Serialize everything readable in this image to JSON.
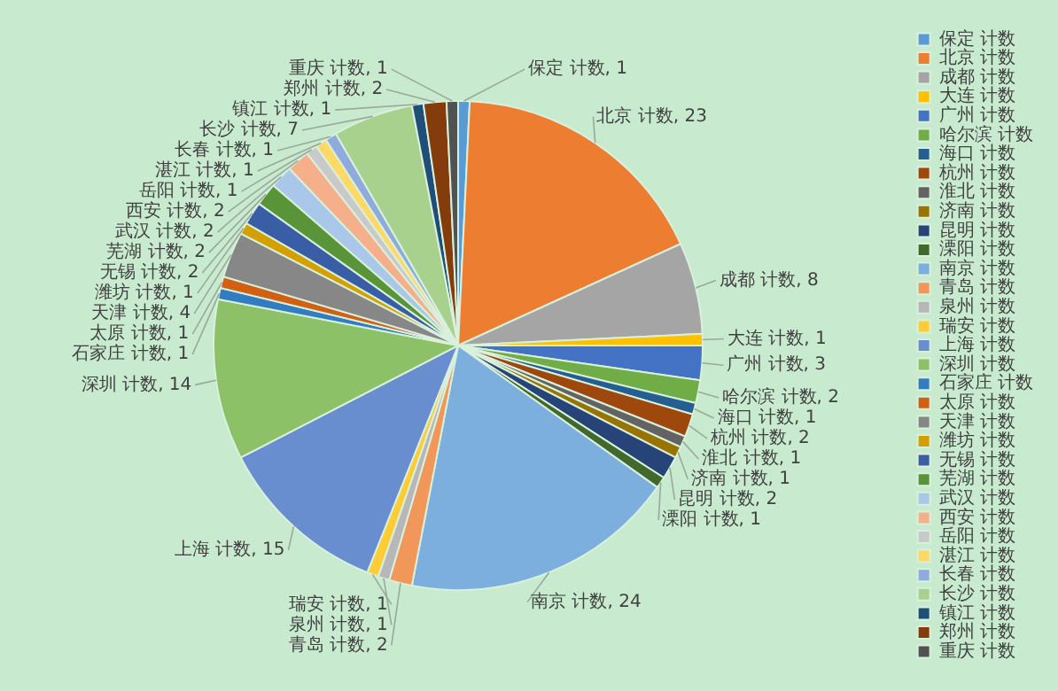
{
  "chart_data": {
    "type": "pie",
    "categories": [
      "保定 计数",
      "北京 计数",
      "成都 计数",
      "大连 计数",
      "广州 计数",
      "哈尔滨 计数",
      "海口 计数",
      "杭州 计数",
      "淮北 计数",
      "济南 计数",
      "昆明 计数",
      "溧阳 计数",
      "南京 计数",
      "青岛 计数",
      "泉州 计数",
      "瑞安 计数",
      "上海 计数",
      "深圳 计数",
      "石家庄 计数",
      "太原 计数",
      "天津 计数",
      "潍坊 计数",
      "无锡 计数",
      "芜湖 计数",
      "武汉 计数",
      "西安 计数",
      "岳阳 计数",
      "湛江 计数",
      "长春 计数",
      "长沙 计数",
      "镇江 计数",
      "郑州 计数",
      "重庆 计数"
    ],
    "values": [
      1,
      23,
      8,
      1,
      3,
      2,
      1,
      2,
      1,
      1,
      2,
      1,
      24,
      2,
      1,
      1,
      15,
      14,
      1,
      1,
      4,
      1,
      2,
      2,
      2,
      2,
      1,
      1,
      1,
      7,
      1,
      2,
      1
    ],
    "colors": [
      "#5b9bd5",
      "#ed7d31",
      "#a5a5a5",
      "#ffc000",
      "#4472c4",
      "#70ad47",
      "#255e91",
      "#9e480e",
      "#636363",
      "#997300",
      "#264478",
      "#43682b",
      "#7cafdd",
      "#f1975a",
      "#b7b7b7",
      "#ffcd33",
      "#698ed0",
      "#8cc168",
      "#327dc2",
      "#d26012",
      "#878787",
      "#d4a000",
      "#3a5ea6",
      "#5a9439",
      "#a9c7e8",
      "#f5b08b",
      "#c9c9c9",
      "#ffd966",
      "#8faadc",
      "#a9d18e",
      "#1f4e79",
      "#843c0c",
      "#525252"
    ],
    "value_labels": [
      "保定 计数, 1",
      "北京 计数, 23",
      "成都 计数, 8",
      "大连 计数, 1",
      "广州 计数, 3",
      "哈尔滨 计数, 2",
      "海口 计数, 1",
      "杭州 计数, 2",
      "淮北 计数, 1",
      "济南 计数, 1",
      "昆明 计数, 2",
      "溧阳 计数, 1",
      "南京 计数, 24",
      "青岛 计数, 2",
      "泉州 计数, 1",
      "瑞安 计数, 1",
      "上海 计数, 15",
      "深圳 计数, 14",
      "石家庄 计数, 1",
      "太原 计数, 1",
      "天津 计数, 4",
      "潍坊 计数, 1",
      "无锡 计数, 2",
      "芜湖 计数, 2",
      "武汉 计数, 2",
      "西安 计数, 2",
      "岳阳 计数, 1",
      "湛江 计数, 1",
      "长春 计数, 1",
      "长沙 计数, 7",
      "镇江 计数, 1",
      "郑州 计数, 2",
      "重庆 计数, 1"
    ],
    "legend": "right"
  }
}
